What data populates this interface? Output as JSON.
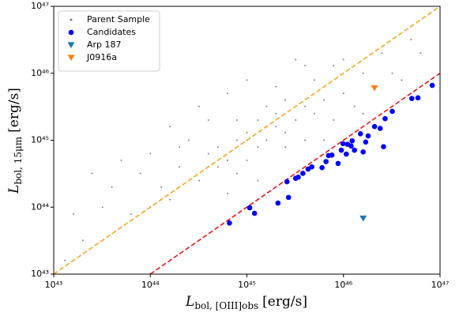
{
  "chart_data": {
    "type": "scatter",
    "log_x": true,
    "log_y": true,
    "xlabel": {
      "main": "L",
      "sub": "bol, [OIII]obs",
      "unit": "[erg/s]"
    },
    "ylabel": {
      "main": "L",
      "sub": "bol, 15μm",
      "unit": "[erg/s]"
    },
    "xlim": [
      1e+43,
      1e+47
    ],
    "ylim": [
      1e+43,
      1e+47
    ],
    "xticks": [
      {
        "value": 1e+43,
        "label": "10⁴³"
      },
      {
        "value": 1e+44,
        "label": "10⁴⁴"
      },
      {
        "value": 1e+45,
        "label": "10⁴⁵"
      },
      {
        "value": 1e+46,
        "label": "10⁴⁶"
      },
      {
        "value": 1e+47,
        "label": "10⁴⁷"
      }
    ],
    "yticks": [
      {
        "value": 1e+43,
        "label": "10⁴³"
      },
      {
        "value": 1e+44,
        "label": "10⁴⁴"
      },
      {
        "value": 1e+45,
        "label": "10⁴⁵"
      },
      {
        "value": 1e+46,
        "label": "10⁴⁶"
      },
      {
        "value": 1e+47,
        "label": "10⁴⁷"
      }
    ],
    "legend": "upper left",
    "reference_lines": [
      {
        "color": "#f5a623",
        "style": "dashed",
        "x": [
          1e+43,
          1e+47
        ],
        "y": [
          1e+43,
          1e+47
        ]
      },
      {
        "color": "#e8161c",
        "style": "dashed",
        "x": [
          1e+44,
          1e+47
        ],
        "y": [
          1e+43,
          1e+46
        ]
      }
    ],
    "series": [
      {
        "name": "Parent Sample",
        "color": "#808080",
        "marker": "dot",
        "x": [
          4e+44,
          6.3e+44,
          1e+45,
          1.6e+45,
          7.9e+44,
          1.3e+45,
          2e+45,
          5e+44,
          3.2e+45,
          2.5e+45,
          3.2e+44,
          2e+44,
          4e+45,
          6.3e+45,
          1e+45,
          7.9e+44,
          1.6e+45,
          5e+45,
          1e+46,
          1.6e+46,
          1.3e+44,
          7.9e+43,
          2.5e+44,
          4e+44,
          2e+45,
          7.9e+45,
          2e+46,
          2.5e+46,
          3.2e+43,
          2e+43,
          4e+43,
          1e+44,
          1.6e+44,
          6.3e+44,
          1.3e+45,
          2.5e+45,
          4e+45,
          7.9e+45,
          1.3e+46,
          3.2e+44,
          6.3e+44,
          1e+45,
          4e+45,
          3.2e+45,
          3.2e+46,
          4e+46,
          1.6e+43,
          1.3e+43,
          6.3e+43,
          1e+44,
          5e+44,
          1.3e+45,
          2e+45,
          7.9e+44,
          1.6e+45,
          1e+45,
          4e+44,
          2.5e+45,
          5e+45,
          1e+46,
          2e+44,
          5e+43,
          1.6e+44,
          5e+46,
          6.3e+46,
          2.5e+43,
          6.3e+45,
          1.6e+46
        ],
        "y": [
          6.3e+44,
          5e+44,
          1.3e+45,
          1e+45,
          2e+45,
          7.9e+44,
          1.6e+45,
          7.9e+44,
          2e+45,
          4e+45,
          2.5e+44,
          4e+44,
          3.2e+45,
          4e+45,
          5e+44,
          3.2e+44,
          3.2e+45,
          7.9e+45,
          5e+45,
          1e+46,
          2e+44,
          3.2e+44,
          1e+45,
          2e+45,
          6.3e+45,
          1.3e+46,
          6.3e+45,
          2e+46,
          1e+44,
          3.2e+43,
          2e+44,
          6.3e+44,
          1.3e+44,
          1.6e+44,
          2.5e+44,
          7.9e+44,
          1e+45,
          2e+45,
          3.2e+45,
          3.2e+45,
          5e+45,
          7.9e+45,
          1.3e+46,
          1.6e+46,
          1e+46,
          7.9e+45,
          7.9e+43,
          1.6e+43,
          7.9e+43,
          1e+44,
          4e+44,
          2e+45,
          2.5e+45,
          1e+45,
          1.6e+45,
          1e+45,
          4e+44,
          1.3e+45,
          2.5e+45,
          1.6e+46,
          7.9e+44,
          5e+44,
          1.6e+45,
          3.2e+46,
          2e+46,
          3.2e+44,
          1e+45,
          2.5e+45
        ]
      },
      {
        "name": "Candidates",
        "color": "#0000ff",
        "marker": "circle",
        "x": [
          6.6e+44,
          1.07e+45,
          1.2e+45,
          2.1e+45,
          2.7e+45,
          2.6e+45,
          3.2e+45,
          3.4e+45,
          3.8e+45,
          4.3e+45,
          4.7e+45,
          6e+45,
          6.6e+45,
          7e+45,
          7.6e+45,
          8.8e+45,
          9.5e+45,
          9.9e+45,
          1.07e+46,
          1.1e+46,
          1.2e+46,
          1.23e+46,
          1.3e+46,
          1.5e+46,
          1.6e+46,
          1.7e+46,
          1.8e+46,
          2.1e+46,
          2.4e+46,
          2.6e+46,
          2.7e+46,
          3.2e+46,
          5.1e+46,
          5.9e+46,
          8.3e+46
        ],
        "y": [
          5.8e+43,
          9.8e+43,
          8.1e+43,
          1.15e+44,
          1.4e+44,
          2.4e+44,
          2.7e+44,
          2.8e+44,
          3.2e+44,
          3.7e+44,
          4e+44,
          3.9e+44,
          4.8e+44,
          5.9e+44,
          6e+44,
          4.5e+44,
          7.1e+44,
          8.9e+44,
          6.2e+44,
          8.7e+44,
          8.2e+44,
          9.8e+44,
          7.1e+44,
          1.25e+45,
          6.7e+44,
          9.4e+44,
          1.16e+45,
          1.6e+45,
          1.5e+45,
          8e+44,
          2.1e+45,
          2.7e+45,
          4.2e+45,
          4.3e+45,
          6.6e+45
        ]
      },
      {
        "name": "Arp 187",
        "color": "#1f77b4",
        "marker": "triangle",
        "x": [
          1.6e+46
        ],
        "y": [
          6.8e+43
        ]
      },
      {
        "name": "J0916a",
        "color": "#ff7f0e",
        "marker": "triangle",
        "x": [
          2.1e+46
        ],
        "y": [
          6e+45
        ]
      }
    ]
  }
}
